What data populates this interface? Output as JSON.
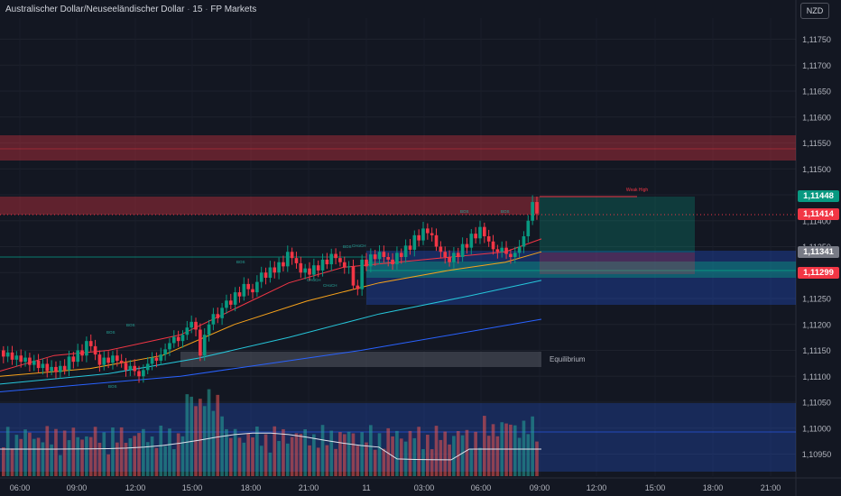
{
  "header": {
    "symbol": "Australischer Dollar/Neuseeländischer Dollar",
    "interval": "15",
    "broker": "FP Markets",
    "currency_button": "NZD"
  },
  "chart_data": {
    "type": "candlestick",
    "y_axis": {
      "ticks": [
        "1,11750",
        "1,11700",
        "1,11650",
        "1,11600",
        "1,11550",
        "1,11500",
        "1,11450",
        "1,11400",
        "1,11350",
        "1,11300",
        "1,11250",
        "1,11200",
        "1,11150",
        "1,11100",
        "1,11050",
        "1,11000",
        "1,10950"
      ],
      "range": [
        1.10925,
        1.11805
      ]
    },
    "x_axis": {
      "ticks": [
        "06:00",
        "09:00",
        "12:00",
        "15:00",
        "18:00",
        "21:00",
        "11",
        "03:00",
        "06:00",
        "09:00",
        "12:00",
        "15:00",
        "18:00",
        "21:00"
      ]
    },
    "price_tags": [
      {
        "label": "1,11448",
        "value": 1.11448,
        "color": "#089981"
      },
      {
        "label": "1,11414",
        "value": 1.11414,
        "color": "#f23645"
      },
      {
        "label": "1,11341",
        "value": 1.11341,
        "color": "#787b86"
      },
      {
        "label": "1,11299",
        "value": 1.11299,
        "color": "#f23645"
      }
    ],
    "annotations": {
      "equilibrium": "Equilibrium",
      "weak_high": "Weak High",
      "structure": [
        "BOS",
        "BOS",
        "BOS",
        "BOS",
        "BOS",
        "CHoCH",
        "CHoCH",
        "CHoCH",
        "BOS",
        "BOS"
      ]
    },
    "zones": [
      {
        "kind": "supply",
        "from": 1.1157,
        "to": 1.1152,
        "color": "#f23645"
      },
      {
        "kind": "supply",
        "from": 1.11475,
        "to": 1.11445,
        "color": "#f23645"
      },
      {
        "kind": "demand",
        "from": 1.11345,
        "to": 1.1124,
        "color": "#2962ff"
      },
      {
        "kind": "demand",
        "from": 1.11055,
        "to": 1.1096,
        "color": "#2962ff"
      }
    ],
    "candles": {
      "open": [
        1.1115,
        1.11138,
        1.11146,
        1.11132,
        1.1114,
        1.11128,
        1.11136,
        1.11122,
        1.1113,
        1.11116,
        1.11124,
        1.1111,
        1.11118,
        1.11108,
        1.1112,
        1.11112,
        1.11138,
        1.11128,
        1.1115,
        1.1114,
        1.11168,
        1.11158,
        1.11142,
        1.11122,
        1.11136,
        1.11126,
        1.1114,
        1.1113,
        1.11126,
        1.11112,
        1.1112,
        1.1111,
        1.111,
        1.11112,
        1.11124,
        1.11136,
        1.1113,
        1.11142,
        1.11152,
        1.11164,
        1.11176,
        1.11168,
        1.1118,
        1.11194,
        1.11205,
        1.1119,
        1.1114,
        1.1118,
        1.112,
        1.1122,
        1.11212,
        1.11232,
        1.11246,
        1.11238,
        1.11262,
        1.11254,
        1.11278,
        1.11268,
        1.11262,
        1.11282,
        1.113,
        1.1129,
        1.1131,
        1.113,
        1.1132,
        1.11312,
        1.1134,
        1.11328,
        1.11318,
        1.113,
        1.11308,
        1.11296,
        1.11314,
        1.11304,
        1.11325,
        1.11316,
        1.11336,
        1.11328,
        1.1132,
        1.1131,
        1.11312,
        1.11275,
        1.11268,
        1.11325,
        1.11312,
        1.11335,
        1.11326,
        1.1134,
        1.1133,
        1.11325,
        1.11316,
        1.11338,
        1.1133,
        1.11352,
        1.11344,
        1.11372,
        1.11362,
        1.11385,
        1.11376,
        1.11372,
        1.1135,
        1.1134,
        1.1133,
        1.1132,
        1.11338,
        1.1133,
        1.11355,
        1.11348,
        1.11375,
        1.11366,
        1.11388,
        1.1137,
        1.1136,
        1.11345,
        1.1134,
        1.11348,
        1.11336,
        1.1133,
        1.11338,
        1.1135,
        1.1137,
        1.114,
        1.11436
      ],
      "close": [
        1.11138,
        1.11146,
        1.11132,
        1.1114,
        1.11128,
        1.11136,
        1.11122,
        1.1113,
        1.11116,
        1.11124,
        1.1111,
        1.11118,
        1.11108,
        1.1112,
        1.11112,
        1.11138,
        1.11128,
        1.1115,
        1.1114,
        1.11168,
        1.11158,
        1.11142,
        1.11122,
        1.11136,
        1.11126,
        1.1114,
        1.1113,
        1.11126,
        1.11112,
        1.1112,
        1.1111,
        1.111,
        1.11112,
        1.11124,
        1.11136,
        1.1113,
        1.11142,
        1.11152,
        1.11164,
        1.11176,
        1.11168,
        1.1118,
        1.11194,
        1.11205,
        1.1119,
        1.1114,
        1.1118,
        1.112,
        1.1122,
        1.11212,
        1.11232,
        1.11246,
        1.11238,
        1.11262,
        1.11254,
        1.11278,
        1.11268,
        1.11262,
        1.11282,
        1.113,
        1.1129,
        1.1131,
        1.113,
        1.1132,
        1.11312,
        1.1134,
        1.11328,
        1.11318,
        1.113,
        1.11308,
        1.11296,
        1.11314,
        1.11304,
        1.11325,
        1.11316,
        1.11336,
        1.11328,
        1.1132,
        1.1131,
        1.11312,
        1.11275,
        1.11268,
        1.11325,
        1.11312,
        1.11335,
        1.11326,
        1.1134,
        1.1133,
        1.11325,
        1.11316,
        1.11338,
        1.1133,
        1.11352,
        1.11344,
        1.11372,
        1.11362,
        1.11385,
        1.11376,
        1.11372,
        1.1135,
        1.1134,
        1.1133,
        1.1132,
        1.11338,
        1.1133,
        1.11355,
        1.11348,
        1.11375,
        1.11366,
        1.11388,
        1.1137,
        1.1136,
        1.11345,
        1.1134,
        1.11348,
        1.11336,
        1.1133,
        1.11338,
        1.1135,
        1.1137,
        1.114,
        1.11436,
        1.11414
      ]
    },
    "volume_bars": 121,
    "moving_averages": [
      {
        "color": "#f23645",
        "points": [
          [
            0,
            1.1111
          ],
          [
            60,
            1.1114
          ],
          [
            120,
            1.1115
          ],
          [
            200,
            1.1118
          ],
          [
            260,
            1.1123
          ],
          [
            320,
            1.1128
          ],
          [
            380,
            1.1131
          ],
          [
            440,
            1.1132
          ],
          [
            500,
            1.1133
          ],
          [
            560,
            1.1134
          ],
          [
            600,
            1.11365
          ]
        ]
      },
      {
        "color": "#f7a21b",
        "points": [
          [
            0,
            1.111
          ],
          [
            100,
            1.11115
          ],
          [
            180,
            1.1114
          ],
          [
            260,
            1.112
          ],
          [
            340,
            1.11245
          ],
          [
            420,
            1.1128
          ],
          [
            500,
            1.11305
          ],
          [
            560,
            1.1132
          ],
          [
            600,
            1.1134
          ]
        ]
      },
      {
        "color": "#26c6da",
        "points": [
          [
            0,
            1.11085
          ],
          [
            120,
            1.11105
          ],
          [
            220,
            1.11135
          ],
          [
            320,
            1.11175
          ],
          [
            420,
            1.1122
          ],
          [
            520,
            1.11255
          ],
          [
            600,
            1.11285
          ]
        ]
      },
      {
        "color": "#2962ff",
        "points": [
          [
            0,
            1.1107
          ],
          [
            200,
            1.111
          ],
          [
            400,
            1.1115
          ],
          [
            600,
            1.1121
          ]
        ]
      }
    ]
  }
}
